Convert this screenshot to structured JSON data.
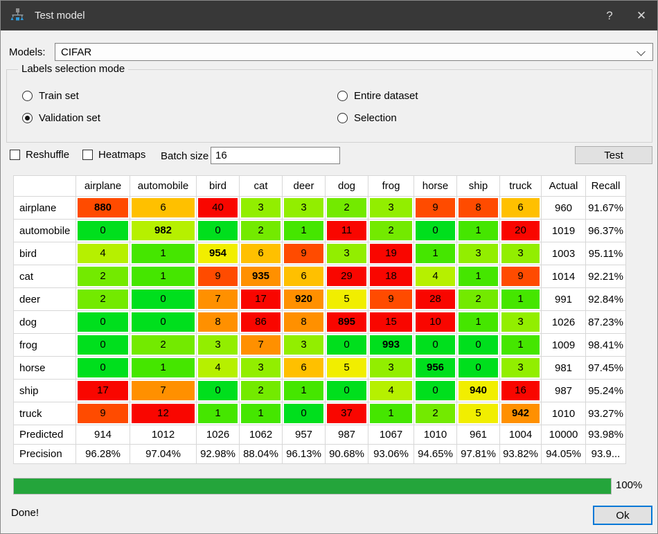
{
  "window": {
    "title": "Test model",
    "help_button": "?",
    "close_button": "✕"
  },
  "models": {
    "label": "Models:",
    "value": "CIFAR"
  },
  "labels_selection": {
    "legend": "Labels selection mode",
    "options": [
      {
        "label": "Train set",
        "selected": false
      },
      {
        "label": "Validation set",
        "selected": true
      },
      {
        "label": "Entire dataset",
        "selected": false
      },
      {
        "label": "Selection",
        "selected": false
      }
    ]
  },
  "controls": {
    "reshuffle_label": "Reshuffle",
    "reshuffle_checked": false,
    "heatmaps_label": "Heatmaps",
    "heatmaps_checked": false,
    "batch_size_label": "Batch size",
    "batch_size_value": "16",
    "test_button": "Test"
  },
  "palette": {
    "G0": "#00df1d",
    "G1": "#45e600",
    "G2": "#73ea00",
    "G3": "#92ee00",
    "G4": "#b6f000",
    "Y": "#f1ee00",
    "A": "#ffc000",
    "O": "#ff9000",
    "OR": "#ff4b00",
    "R": "#f90600"
  },
  "matrix": {
    "columns": [
      "airplane",
      "automobile",
      "bird",
      "cat",
      "deer",
      "dog",
      "frog",
      "horse",
      "ship",
      "truck",
      "Actual",
      "Recall"
    ],
    "rows": [
      {
        "label": "airplane",
        "cells": [
          {
            "v": 880,
            "c": "OR",
            "b": true
          },
          {
            "v": 6,
            "c": "A"
          },
          {
            "v": 40,
            "c": "R"
          },
          {
            "v": 3,
            "c": "G3"
          },
          {
            "v": 3,
            "c": "G3"
          },
          {
            "v": 2,
            "c": "G2"
          },
          {
            "v": 3,
            "c": "G3"
          },
          {
            "v": 9,
            "c": "OR"
          },
          {
            "v": 8,
            "c": "OR"
          },
          {
            "v": 6,
            "c": "A"
          }
        ],
        "actual": "960",
        "recall": "91.67%"
      },
      {
        "label": "automobile",
        "cells": [
          {
            "v": 0,
            "c": "G0"
          },
          {
            "v": 982,
            "c": "G4",
            "b": true
          },
          {
            "v": 0,
            "c": "G0"
          },
          {
            "v": 2,
            "c": "G2"
          },
          {
            "v": 1,
            "c": "G1"
          },
          {
            "v": 11,
            "c": "R"
          },
          {
            "v": 2,
            "c": "G2"
          },
          {
            "v": 0,
            "c": "G0"
          },
          {
            "v": 1,
            "c": "G1"
          },
          {
            "v": 20,
            "c": "R"
          }
        ],
        "actual": "1019",
        "recall": "96.37%"
      },
      {
        "label": "bird",
        "cells": [
          {
            "v": 4,
            "c": "G4"
          },
          {
            "v": 1,
            "c": "G1"
          },
          {
            "v": 954,
            "c": "Y",
            "b": true
          },
          {
            "v": 6,
            "c": "A"
          },
          {
            "v": 9,
            "c": "OR"
          },
          {
            "v": 3,
            "c": "G3"
          },
          {
            "v": 19,
            "c": "R"
          },
          {
            "v": 1,
            "c": "G1"
          },
          {
            "v": 3,
            "c": "G3"
          },
          {
            "v": 3,
            "c": "G3"
          }
        ],
        "actual": "1003",
        "recall": "95.11%"
      },
      {
        "label": "cat",
        "cells": [
          {
            "v": 2,
            "c": "G2"
          },
          {
            "v": 1,
            "c": "G1"
          },
          {
            "v": 9,
            "c": "OR"
          },
          {
            "v": 935,
            "c": "O",
            "b": true
          },
          {
            "v": 6,
            "c": "A"
          },
          {
            "v": 29,
            "c": "R"
          },
          {
            "v": 18,
            "c": "R"
          },
          {
            "v": 4,
            "c": "G4"
          },
          {
            "v": 1,
            "c": "G1"
          },
          {
            "v": 9,
            "c": "OR"
          }
        ],
        "actual": "1014",
        "recall": "92.21%"
      },
      {
        "label": "deer",
        "cells": [
          {
            "v": 2,
            "c": "G2"
          },
          {
            "v": 0,
            "c": "G0"
          },
          {
            "v": 7,
            "c": "O"
          },
          {
            "v": 17,
            "c": "R"
          },
          {
            "v": 920,
            "c": "O",
            "b": true
          },
          {
            "v": 5,
            "c": "Y"
          },
          {
            "v": 9,
            "c": "OR"
          },
          {
            "v": 28,
            "c": "R"
          },
          {
            "v": 2,
            "c": "G2"
          },
          {
            "v": 1,
            "c": "G1"
          }
        ],
        "actual": "991",
        "recall": "92.84%"
      },
      {
        "label": "dog",
        "cells": [
          {
            "v": 0,
            "c": "G0"
          },
          {
            "v": 0,
            "c": "G0"
          },
          {
            "v": 8,
            "c": "O"
          },
          {
            "v": 86,
            "c": "R"
          },
          {
            "v": 8,
            "c": "O"
          },
          {
            "v": 895,
            "c": "R",
            "b": true
          },
          {
            "v": 15,
            "c": "R"
          },
          {
            "v": 10,
            "c": "R"
          },
          {
            "v": 1,
            "c": "G1"
          },
          {
            "v": 3,
            "c": "G3"
          }
        ],
        "actual": "1026",
        "recall": "87.23%"
      },
      {
        "label": "frog",
        "cells": [
          {
            "v": 0,
            "c": "G0"
          },
          {
            "v": 2,
            "c": "G2"
          },
          {
            "v": 3,
            "c": "G3"
          },
          {
            "v": 7,
            "c": "O"
          },
          {
            "v": 3,
            "c": "G3"
          },
          {
            "v": 0,
            "c": "G0"
          },
          {
            "v": 993,
            "c": "G0",
            "b": true
          },
          {
            "v": 0,
            "c": "G0"
          },
          {
            "v": 0,
            "c": "G0"
          },
          {
            "v": 1,
            "c": "G1"
          }
        ],
        "actual": "1009",
        "recall": "98.41%"
      },
      {
        "label": "horse",
        "cells": [
          {
            "v": 0,
            "c": "G0"
          },
          {
            "v": 1,
            "c": "G1"
          },
          {
            "v": 4,
            "c": "G4"
          },
          {
            "v": 3,
            "c": "G3"
          },
          {
            "v": 6,
            "c": "A"
          },
          {
            "v": 5,
            "c": "Y"
          },
          {
            "v": 3,
            "c": "G3"
          },
          {
            "v": 956,
            "c": "G0",
            "b": true
          },
          {
            "v": 0,
            "c": "G0"
          },
          {
            "v": 3,
            "c": "G3"
          }
        ],
        "actual": "981",
        "recall": "97.45%"
      },
      {
        "label": "ship",
        "cells": [
          {
            "v": 17,
            "c": "R"
          },
          {
            "v": 7,
            "c": "O"
          },
          {
            "v": 0,
            "c": "G0"
          },
          {
            "v": 2,
            "c": "G2"
          },
          {
            "v": 1,
            "c": "G1"
          },
          {
            "v": 0,
            "c": "G0"
          },
          {
            "v": 4,
            "c": "G4"
          },
          {
            "v": 0,
            "c": "G0"
          },
          {
            "v": 940,
            "c": "Y",
            "b": true
          },
          {
            "v": 16,
            "c": "R"
          }
        ],
        "actual": "987",
        "recall": "95.24%"
      },
      {
        "label": "truck",
        "cells": [
          {
            "v": 9,
            "c": "OR"
          },
          {
            "v": 12,
            "c": "R"
          },
          {
            "v": 1,
            "c": "G1"
          },
          {
            "v": 1,
            "c": "G1"
          },
          {
            "v": 0,
            "c": "G0"
          },
          {
            "v": 37,
            "c": "R"
          },
          {
            "v": 1,
            "c": "G1"
          },
          {
            "v": 2,
            "c": "G2"
          },
          {
            "v": 5,
            "c": "Y"
          },
          {
            "v": 942,
            "c": "O",
            "b": true
          }
        ],
        "actual": "1010",
        "recall": "93.27%"
      }
    ],
    "predicted": {
      "label": "Predicted",
      "values": [
        "914",
        "1012",
        "1026",
        "1062",
        "957",
        "987",
        "1067",
        "1010",
        "961",
        "1004"
      ],
      "actual": "10000",
      "recall": "93.98%"
    },
    "precision": {
      "label": "Precision",
      "values": [
        "96.28%",
        "97.04%",
        "92.98%",
        "88.04%",
        "96.13%",
        "90.68%",
        "93.06%",
        "94.65%",
        "97.81%",
        "93.82%"
      ],
      "actual": "94.05%",
      "recall": "93.9..."
    }
  },
  "progress": {
    "value": "100%",
    "status": "Done!",
    "ok_button": "Ok"
  }
}
